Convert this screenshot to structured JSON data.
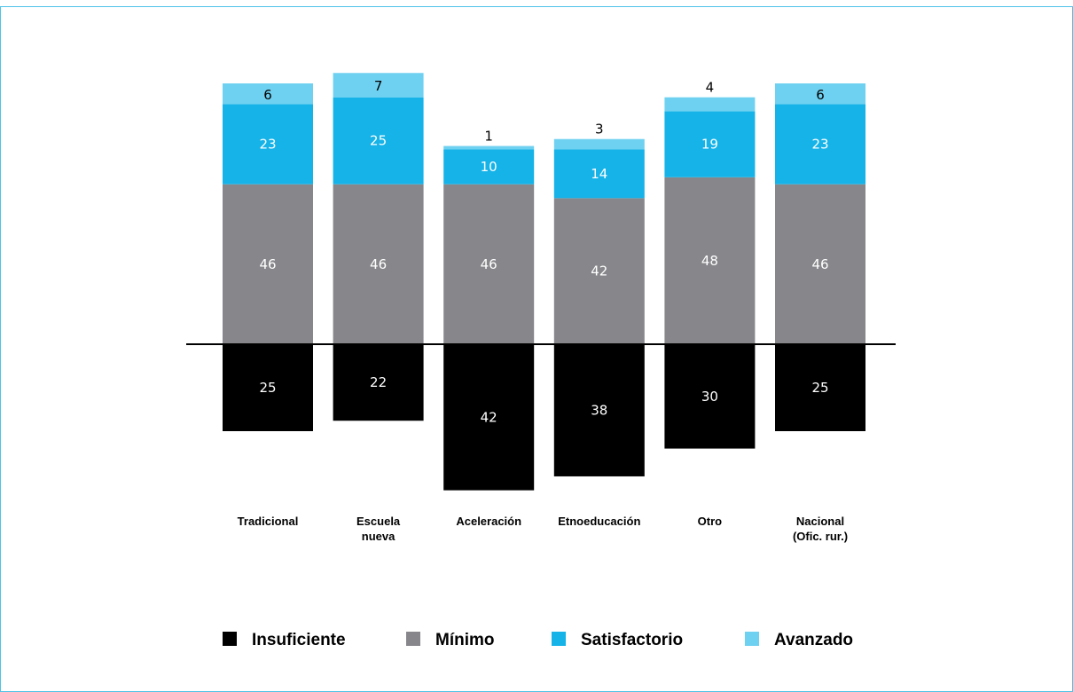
{
  "chart_data": {
    "type": "bar",
    "stacked": true,
    "diverging": true,
    "title": "",
    "xlabel": "",
    "ylabel": "",
    "categories": [
      [
        "Tradicional"
      ],
      [
        "Escuela",
        "nueva"
      ],
      [
        "Aceleración"
      ],
      [
        "Etnoeducación"
      ],
      [
        "Otro"
      ],
      [
        "Nacional",
        "(Ofic. rur.)"
      ]
    ],
    "series": [
      {
        "name": "Insuficiente",
        "color": "#000000",
        "values": [
          25,
          22,
          42,
          38,
          30,
          25
        ],
        "direction": "below"
      },
      {
        "name": "Mínimo",
        "color": "#87878b",
        "values": [
          46,
          46,
          46,
          42,
          48,
          46
        ],
        "direction": "above"
      },
      {
        "name": "Satisfactorio",
        "color": "#16b3e8",
        "values": [
          23,
          25,
          10,
          14,
          19,
          23
        ],
        "direction": "above"
      },
      {
        "name": "Avanzado",
        "color": "#6fd1f1",
        "values": [
          6,
          7,
          1,
          3,
          4,
          6
        ],
        "direction": "above"
      }
    ],
    "legend_position": "bottom",
    "grid": false
  },
  "colors": {
    "border": "#4fc3e8",
    "baseline": "#000000"
  }
}
